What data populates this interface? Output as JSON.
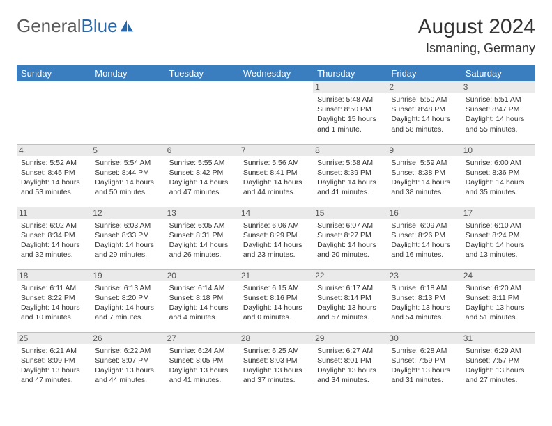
{
  "logo": {
    "text_gray": "General",
    "text_blue": "Blue"
  },
  "title": "August 2024",
  "location": "Ismaning, Germany",
  "colors": {
    "header_bg": "#3a7ec0",
    "header_text": "#ffffff",
    "daynum_bg": "#eaeaea",
    "border": "#bfbfbf",
    "logo_gray": "#5a5a5a",
    "logo_blue": "#2968a8"
  },
  "weekdays": [
    "Sunday",
    "Monday",
    "Tuesday",
    "Wednesday",
    "Thursday",
    "Friday",
    "Saturday"
  ],
  "weeks": [
    [
      null,
      null,
      null,
      null,
      {
        "n": "1",
        "sr": "Sunrise: 5:48 AM",
        "ss": "Sunset: 8:50 PM",
        "dl": "Daylight: 15 hours and 1 minute."
      },
      {
        "n": "2",
        "sr": "Sunrise: 5:50 AM",
        "ss": "Sunset: 8:48 PM",
        "dl": "Daylight: 14 hours and 58 minutes."
      },
      {
        "n": "3",
        "sr": "Sunrise: 5:51 AM",
        "ss": "Sunset: 8:47 PM",
        "dl": "Daylight: 14 hours and 55 minutes."
      }
    ],
    [
      {
        "n": "4",
        "sr": "Sunrise: 5:52 AM",
        "ss": "Sunset: 8:45 PM",
        "dl": "Daylight: 14 hours and 53 minutes."
      },
      {
        "n": "5",
        "sr": "Sunrise: 5:54 AM",
        "ss": "Sunset: 8:44 PM",
        "dl": "Daylight: 14 hours and 50 minutes."
      },
      {
        "n": "6",
        "sr": "Sunrise: 5:55 AM",
        "ss": "Sunset: 8:42 PM",
        "dl": "Daylight: 14 hours and 47 minutes."
      },
      {
        "n": "7",
        "sr": "Sunrise: 5:56 AM",
        "ss": "Sunset: 8:41 PM",
        "dl": "Daylight: 14 hours and 44 minutes."
      },
      {
        "n": "8",
        "sr": "Sunrise: 5:58 AM",
        "ss": "Sunset: 8:39 PM",
        "dl": "Daylight: 14 hours and 41 minutes."
      },
      {
        "n": "9",
        "sr": "Sunrise: 5:59 AM",
        "ss": "Sunset: 8:38 PM",
        "dl": "Daylight: 14 hours and 38 minutes."
      },
      {
        "n": "10",
        "sr": "Sunrise: 6:00 AM",
        "ss": "Sunset: 8:36 PM",
        "dl": "Daylight: 14 hours and 35 minutes."
      }
    ],
    [
      {
        "n": "11",
        "sr": "Sunrise: 6:02 AM",
        "ss": "Sunset: 8:34 PM",
        "dl": "Daylight: 14 hours and 32 minutes."
      },
      {
        "n": "12",
        "sr": "Sunrise: 6:03 AM",
        "ss": "Sunset: 8:33 PM",
        "dl": "Daylight: 14 hours and 29 minutes."
      },
      {
        "n": "13",
        "sr": "Sunrise: 6:05 AM",
        "ss": "Sunset: 8:31 PM",
        "dl": "Daylight: 14 hours and 26 minutes."
      },
      {
        "n": "14",
        "sr": "Sunrise: 6:06 AM",
        "ss": "Sunset: 8:29 PM",
        "dl": "Daylight: 14 hours and 23 minutes."
      },
      {
        "n": "15",
        "sr": "Sunrise: 6:07 AM",
        "ss": "Sunset: 8:27 PM",
        "dl": "Daylight: 14 hours and 20 minutes."
      },
      {
        "n": "16",
        "sr": "Sunrise: 6:09 AM",
        "ss": "Sunset: 8:26 PM",
        "dl": "Daylight: 14 hours and 16 minutes."
      },
      {
        "n": "17",
        "sr": "Sunrise: 6:10 AM",
        "ss": "Sunset: 8:24 PM",
        "dl": "Daylight: 14 hours and 13 minutes."
      }
    ],
    [
      {
        "n": "18",
        "sr": "Sunrise: 6:11 AM",
        "ss": "Sunset: 8:22 PM",
        "dl": "Daylight: 14 hours and 10 minutes."
      },
      {
        "n": "19",
        "sr": "Sunrise: 6:13 AM",
        "ss": "Sunset: 8:20 PM",
        "dl": "Daylight: 14 hours and 7 minutes."
      },
      {
        "n": "20",
        "sr": "Sunrise: 6:14 AM",
        "ss": "Sunset: 8:18 PM",
        "dl": "Daylight: 14 hours and 4 minutes."
      },
      {
        "n": "21",
        "sr": "Sunrise: 6:15 AM",
        "ss": "Sunset: 8:16 PM",
        "dl": "Daylight: 14 hours and 0 minutes."
      },
      {
        "n": "22",
        "sr": "Sunrise: 6:17 AM",
        "ss": "Sunset: 8:14 PM",
        "dl": "Daylight: 13 hours and 57 minutes."
      },
      {
        "n": "23",
        "sr": "Sunrise: 6:18 AM",
        "ss": "Sunset: 8:13 PM",
        "dl": "Daylight: 13 hours and 54 minutes."
      },
      {
        "n": "24",
        "sr": "Sunrise: 6:20 AM",
        "ss": "Sunset: 8:11 PM",
        "dl": "Daylight: 13 hours and 51 minutes."
      }
    ],
    [
      {
        "n": "25",
        "sr": "Sunrise: 6:21 AM",
        "ss": "Sunset: 8:09 PM",
        "dl": "Daylight: 13 hours and 47 minutes."
      },
      {
        "n": "26",
        "sr": "Sunrise: 6:22 AM",
        "ss": "Sunset: 8:07 PM",
        "dl": "Daylight: 13 hours and 44 minutes."
      },
      {
        "n": "27",
        "sr": "Sunrise: 6:24 AM",
        "ss": "Sunset: 8:05 PM",
        "dl": "Daylight: 13 hours and 41 minutes."
      },
      {
        "n": "28",
        "sr": "Sunrise: 6:25 AM",
        "ss": "Sunset: 8:03 PM",
        "dl": "Daylight: 13 hours and 37 minutes."
      },
      {
        "n": "29",
        "sr": "Sunrise: 6:27 AM",
        "ss": "Sunset: 8:01 PM",
        "dl": "Daylight: 13 hours and 34 minutes."
      },
      {
        "n": "30",
        "sr": "Sunrise: 6:28 AM",
        "ss": "Sunset: 7:59 PM",
        "dl": "Daylight: 13 hours and 31 minutes."
      },
      {
        "n": "31",
        "sr": "Sunrise: 6:29 AM",
        "ss": "Sunset: 7:57 PM",
        "dl": "Daylight: 13 hours and 27 minutes."
      }
    ]
  ]
}
